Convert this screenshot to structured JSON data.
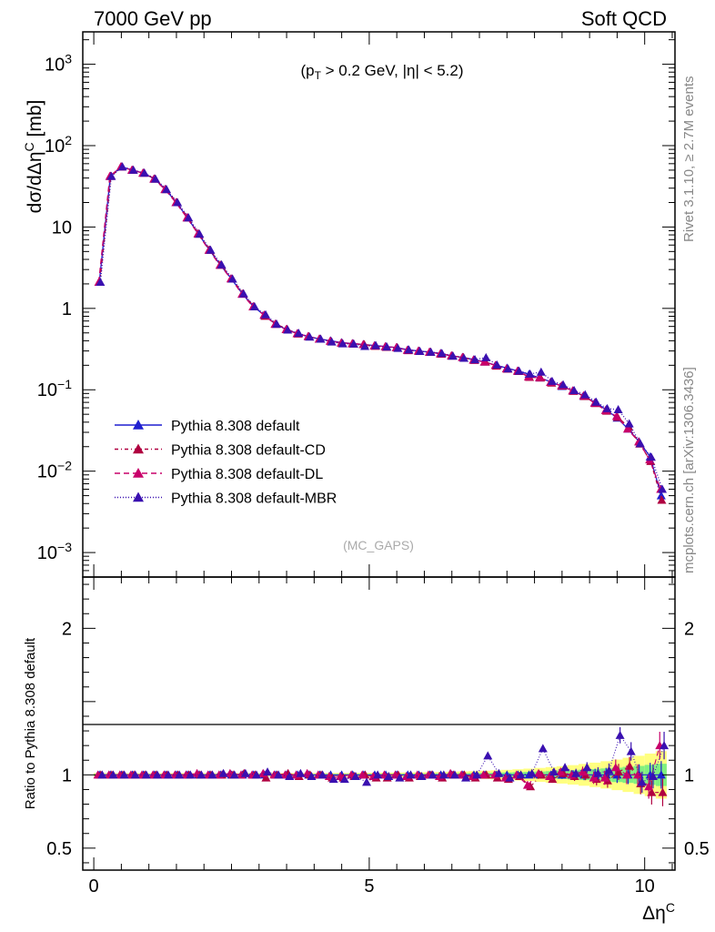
{
  "header": {
    "left": "7000 GeV pp",
    "right": "Soft QCD"
  },
  "side": {
    "rivet": "Rivet 3.1.10, ≥ 2.7M events",
    "mcplots": "mcplots.cern.ch [arXiv:1306.3436]"
  },
  "chart_data": {
    "type": "line",
    "title": "",
    "annotation": "(p_T > 0.2 GeV, |η| < 5.2)",
    "watermark": "(MC_GAPS)",
    "xlabel": "Δη^C",
    "ylabel": "dσ/dΔη^C [mb]",
    "ratio_ylabel": "Ratio to Pythia 8.308 default",
    "xlim": [
      -0.2,
      10.55
    ],
    "ylim": [
      0.0005,
      2500
    ],
    "yscale": "log",
    "ratio_ylim": [
      0.35,
      2.35
    ],
    "x_ticks": [
      "0",
      "5",
      "10"
    ],
    "y_ticks": [
      "10^-3",
      "10^-2",
      "10^-1",
      "1",
      "10",
      "10^2",
      "10^3"
    ],
    "ratio_ticks": [
      "0.5",
      "1",
      "2"
    ],
    "legend_position": "bottom-left",
    "series": [
      {
        "name": "Pythia 8.308 default",
        "color": "#1f1fd0",
        "dash": "solid",
        "ratio_offset": 0
      },
      {
        "name": "Pythia 8.308 default-CD",
        "color": "#b00040",
        "dash": "4,3,1,3",
        "ratio_offset": 1
      },
      {
        "name": "Pythia 8.308 default-DL",
        "color": "#c8006a",
        "dash": "6,4",
        "ratio_offset": -1
      },
      {
        "name": "Pythia 8.308 default-MBR",
        "color": "#3a10b0",
        "dash": "1,2",
        "ratio_offset": 2
      }
    ],
    "x": [
      0.1,
      0.3,
      0.5,
      0.7,
      0.9,
      1.1,
      1.3,
      1.5,
      1.7,
      1.9,
      2.1,
      2.3,
      2.5,
      2.7,
      2.9,
      3.1,
      3.3,
      3.5,
      3.7,
      3.9,
      4.1,
      4.3,
      4.5,
      4.7,
      4.9,
      5.1,
      5.3,
      5.5,
      5.7,
      5.9,
      6.1,
      6.3,
      6.5,
      6.7,
      6.9,
      7.1,
      7.3,
      7.5,
      7.7,
      7.9,
      8.1,
      8.3,
      8.5,
      8.7,
      8.9,
      9.1,
      9.3,
      9.5,
      9.7,
      9.9,
      10.1,
      10.3
    ],
    "y": [
      2.1,
      42,
      55,
      50,
      46,
      39,
      29,
      20,
      13,
      8.2,
      5.2,
      3.4,
      2.3,
      1.5,
      1.05,
      0.82,
      0.64,
      0.55,
      0.49,
      0.45,
      0.42,
      0.4,
      0.38,
      0.37,
      0.36,
      0.35,
      0.34,
      0.33,
      0.31,
      0.3,
      0.29,
      0.28,
      0.26,
      0.25,
      0.235,
      0.22,
      0.2,
      0.185,
      0.17,
      0.155,
      0.14,
      0.125,
      0.11,
      0.097,
      0.083,
      0.07,
      0.057,
      0.045,
      0.033,
      0.023,
      0.015,
      0.005
    ],
    "ratio": [
      [
        1.0,
        1.0,
        1.0,
        1.0,
        1.0,
        1.0,
        1.0,
        1.0,
        1.0,
        1.0,
        1.0,
        1.0,
        1.0,
        1.0,
        1.0,
        1.0,
        1.0,
        1.0,
        1.0,
        1.0,
        1.0,
        1.0,
        1.0,
        1.0,
        1.0,
        1.0,
        1.0,
        1.0,
        1.0,
        1.0,
        1.0,
        1.0,
        1.0,
        1.0,
        1.0,
        1.0,
        1.0,
        1.0,
        1.0,
        1.0,
        1.0,
        1.0,
        1.0,
        1.0,
        1.0,
        1.0,
        1.0,
        1.0,
        1.0,
        1.0,
        1.0,
        1.0
      ],
      [
        1.0,
        1.0,
        1.0,
        1.0,
        1.0,
        1.0,
        1.0,
        1.0,
        1.0,
        1.0,
        1.0,
        1.0,
        1.0,
        1.01,
        1.0,
        0.98,
        1.0,
        1.01,
        0.99,
        1.0,
        1.0,
        0.98,
        0.98,
        0.99,
        1.0,
        0.98,
        0.98,
        1.0,
        0.98,
        0.99,
        1.0,
        0.98,
        1.0,
        1.0,
        0.98,
        1.0,
        0.98,
        0.97,
        0.99,
        0.92,
        1.0,
        0.97,
        1.01,
        0.99,
        1.0,
        0.97,
        0.96,
        1.02,
        1.06,
        0.94,
        0.88,
        0.88
      ],
      [
        1.0,
        1.0,
        1.0,
        1.0,
        1.0,
        1.0,
        1.0,
        1.0,
        1.0,
        1.01,
        1.0,
        1.0,
        1.01,
        1.0,
        1.0,
        1.01,
        1.0,
        1.0,
        1.0,
        1.01,
        1.0,
        0.99,
        0.99,
        1.0,
        1.0,
        0.99,
        1.0,
        1.0,
        0.99,
        1.0,
        1.0,
        0.99,
        1.01,
        1.0,
        0.99,
        1.0,
        1.0,
        0.98,
        1.0,
        0.93,
        1.01,
        0.99,
        1.02,
        1.0,
        1.02,
        0.98,
        0.98,
        1.05,
        1.0,
        1.0,
        0.92,
        1.2
      ],
      [
        1.0,
        1.0,
        1.0,
        1.0,
        1.0,
        1.0,
        1.0,
        1.0,
        1.0,
        1.0,
        1.0,
        1.01,
        1.0,
        1.01,
        1.0,
        1.02,
        1.0,
        0.99,
        1.01,
        0.99,
        1.0,
        0.97,
        0.97,
        0.99,
        0.95,
        1.0,
        0.99,
        0.98,
        1.0,
        0.99,
        1.0,
        1.0,
        1.0,
        0.98,
        1.0,
        1.13,
        1.01,
        0.98,
        1.0,
        1.01,
        1.18,
        1.02,
        1.05,
        1.01,
        1.05,
        1.01,
        1.03,
        1.27,
        1.16,
        0.95,
        0.99,
        1.2
      ]
    ]
  }
}
